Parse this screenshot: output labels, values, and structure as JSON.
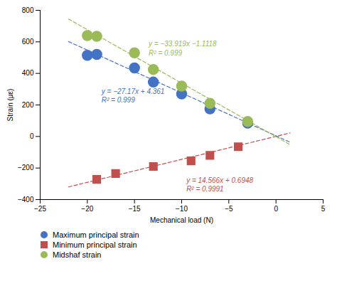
{
  "chart_data": {
    "type": "scatter",
    "xlabel": "Mechanical load (N)",
    "ylabel": "Strain (με)",
    "xlim": [
      -25,
      5
    ],
    "ylim": [
      -400,
      800
    ],
    "xticks": [
      -25,
      -20,
      -15,
      -10,
      -5,
      0,
      5
    ],
    "yticks": [
      -400,
      -200,
      0,
      200,
      400,
      600,
      800
    ],
    "legend": "bottom",
    "series": [
      {
        "name": "Maximum principal strain",
        "color": "#4472C4",
        "marker": "circle",
        "x": [
          -20,
          -19,
          -15,
          -13,
          -10,
          -7,
          -3
        ],
        "values": [
          515,
          520,
          435,
          345,
          270,
          175,
          85
        ],
        "fit": {
          "slope": -27.17,
          "intercept": 4.361,
          "x": [
            -22,
            1.5
          ],
          "line_style": "dashed"
        }
      },
      {
        "name": "Minimum principal strain",
        "color": "#C0504D",
        "marker": "square",
        "x": [
          -19,
          -17,
          -13,
          -9,
          -7,
          -4
        ],
        "values": [
          -272,
          -235,
          -190,
          -155,
          -120,
          -65
        ],
        "fit": {
          "slope": 14.566,
          "intercept": 0.6948,
          "x": [
            -22,
            1.5
          ],
          "line_style": "dashed"
        }
      },
      {
        "name": "Midshaf strain",
        "color": "#9BBB59",
        "marker": "circle",
        "x": [
          -20,
          -19,
          -15,
          -13,
          -10,
          -7,
          -3
        ],
        "values": [
          640,
          635,
          530,
          425,
          320,
          210,
          95
        ],
        "fit": {
          "slope": -33.919,
          "intercept": -1.1118,
          "x": [
            -22,
            1.5
          ],
          "line_style": "dashed"
        }
      }
    ],
    "annotations": [
      {
        "text": "y = −33.919x −1.1118",
        "x": -13.5,
        "y": 570,
        "color": "#9BBB59"
      },
      {
        "text": "R² = 0.999",
        "x": -13.5,
        "y": 515,
        "color": "#9BBB59"
      },
      {
        "text": "y = −27.17x + 4.361",
        "x": -18.5,
        "y": 270,
        "color": "#4472C4"
      },
      {
        "text": "R² = 0.999",
        "x": -18.5,
        "y": 215,
        "color": "#4472C4"
      },
      {
        "text": "y = 14.566x + 0.6948",
        "x": -9.5,
        "y": -295,
        "color": "#C0504D"
      },
      {
        "text": "R² = 0.9991",
        "x": -9.5,
        "y": -350,
        "color": "#C0504D"
      }
    ]
  }
}
